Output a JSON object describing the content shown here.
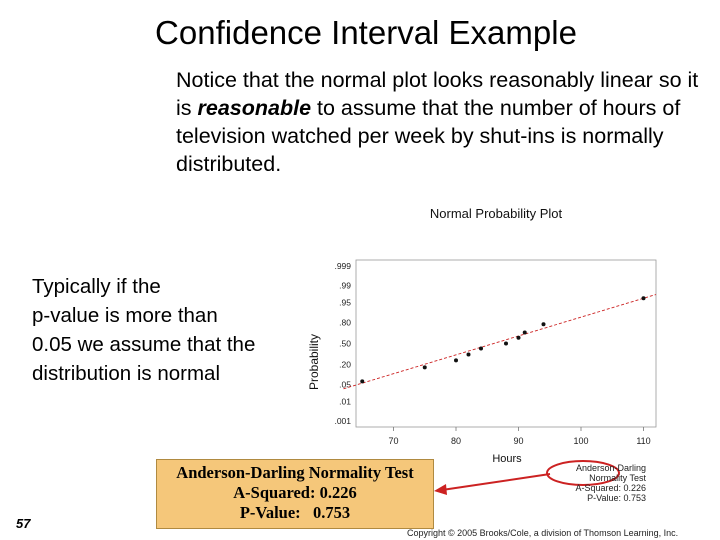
{
  "title": "Confidence Interval Example",
  "notice": {
    "part1": "Notice that the normal plot looks reasonably linear so it is ",
    "emph": "reasonable",
    "part2": " to assume that the number of hours of television watched per week by shut-ins is normally distributed."
  },
  "typically": {
    "line1": "Typically if the",
    "line2": "p-value is more than",
    "line3": "0.05 we assume that the",
    "line4": "distribution is normal"
  },
  "chart_data": {
    "type": "scatter",
    "title": "Normal Probability Plot",
    "xlabel": "Hours",
    "ylabel": "Probability",
    "x_ticks": [
      70,
      80,
      90,
      100,
      110
    ],
    "y_ticks": [
      ".999",
      ".99",
      ".95",
      ".80",
      ".50",
      ".20",
      ".05",
      ".01",
      ".001"
    ],
    "xlim": [
      64,
      112
    ],
    "grid": false,
    "points": [
      {
        "x": 65,
        "y": 0.065
      },
      {
        "x": 75,
        "y": 0.17
      },
      {
        "x": 80,
        "y": 0.25
      },
      {
        "x": 82,
        "y": 0.33
      },
      {
        "x": 84,
        "y": 0.42
      },
      {
        "x": 88,
        "y": 0.5
      },
      {
        "x": 90,
        "y": 0.59
      },
      {
        "x": 91,
        "y": 0.67
      },
      {
        "x": 94,
        "y": 0.78
      },
      {
        "x": 110,
        "y": 0.965
      }
    ],
    "fit_line": [
      {
        "x": 62,
        "y": 0.035
      },
      {
        "x": 112,
        "y": 0.975
      }
    ],
    "small_box": {
      "line1": "Anderson-Darling Normality Test",
      "line2": "A-Squared: 0.226",
      "line3": "P-Value: 0.753"
    }
  },
  "ad_box": {
    "line1": "Anderson-Darling Normality Test",
    "line2": "A-Squared: 0.226",
    "line3": "P-Value:   0.753"
  },
  "colors": {
    "ad_box_bg": "#f5c77a",
    "arrow": "#cc2222",
    "fit_line": "#cc2222"
  },
  "slide_number": "57",
  "copyright": "Copyright © 2005 Brooks/Cole, a division of Thomson Learning, Inc."
}
